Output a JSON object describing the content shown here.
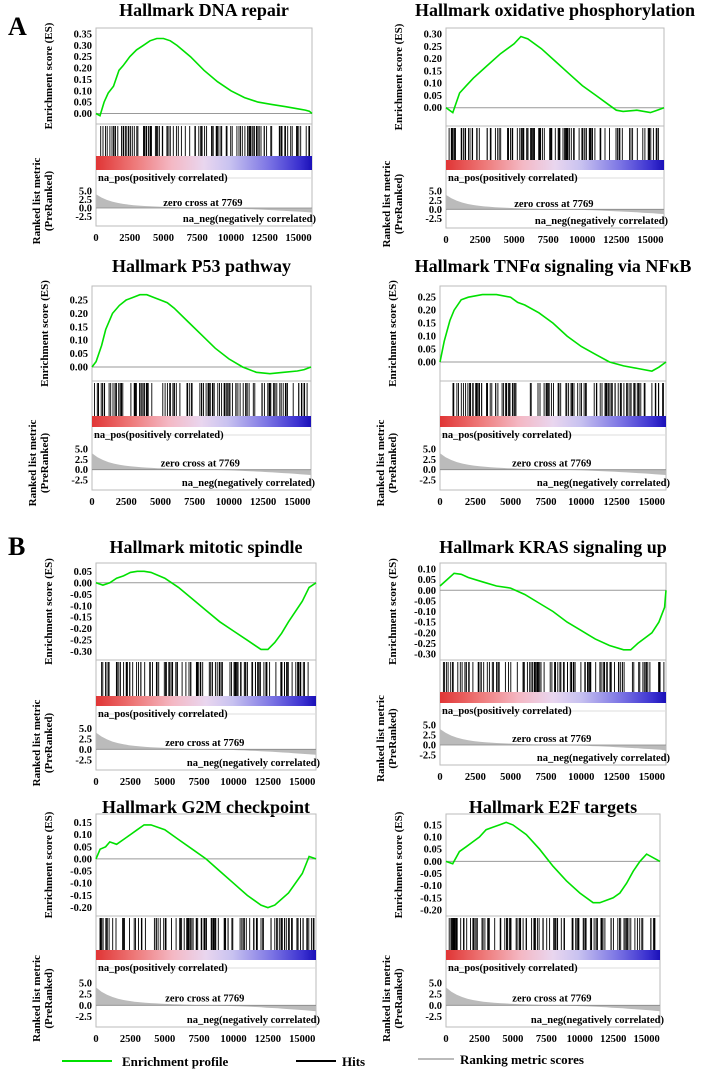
{
  "figure": {
    "panel_labels": [
      "A",
      "B"
    ],
    "legend": {
      "profile_label": "Enrichment profile",
      "hits_label": "Hits",
      "ranking_label": "Ranking metric scores",
      "profile_color": "#00e000",
      "hits_color": "#000000",
      "ranking_color": "#bbbbbb"
    }
  },
  "common": {
    "es_ylabel": "Enrichment score (ES)",
    "rank_ylabel_1": "Ranked list metric",
    "rank_ylabel_2": "(PreRanked)",
    "pos_label": "na_pos(positively correlated)",
    "zero_cross_label": "zero cross at 7769",
    "neg_label": "na_neg(negatively correlated)",
    "xticks": [
      "0",
      "2500",
      "5000",
      "7500",
      "10000",
      "12500",
      "15000"
    ],
    "xtick_values": [
      0,
      2500,
      5000,
      7500,
      10000,
      12500,
      15000
    ],
    "rank_yticks": [
      "5.0",
      "2.5",
      "0.0",
      "-2.5"
    ],
    "rank_ytick_values": [
      5.0,
      2.5,
      0.0,
      -2.5
    ],
    "xmax": 16000,
    "zero_cross": 7769
  },
  "chart_data": [
    {
      "type": "line",
      "title": "Hallmark DNA repair",
      "ylim": [
        -0.02,
        0.35
      ],
      "yticks": [
        "0.35",
        "0.30",
        "0.25",
        "0.20",
        "0.15",
        "0.10",
        "0.05",
        "0.00"
      ],
      "ytick_values": [
        0.35,
        0.3,
        0.25,
        0.2,
        0.15,
        0.1,
        0.05,
        0.0
      ],
      "es_curve": {
        "x": [
          0,
          300,
          600,
          900,
          1300,
          1700,
          2000,
          2500,
          3000,
          3500,
          4000,
          4500,
          5000,
          5500,
          6000,
          7000,
          8000,
          9000,
          10000,
          11000,
          12000,
          13000,
          14000,
          15000,
          15500,
          15800,
          16000
        ],
        "y": [
          0.0,
          -0.01,
          0.05,
          0.09,
          0.12,
          0.19,
          0.21,
          0.25,
          0.28,
          0.3,
          0.32,
          0.33,
          0.33,
          0.32,
          0.3,
          0.25,
          0.19,
          0.14,
          0.1,
          0.07,
          0.05,
          0.04,
          0.03,
          0.02,
          0.015,
          0.01,
          0.0
        ]
      }
    },
    {
      "type": "line",
      "title": "Hallmark oxidative phosphorylation",
      "ylim": [
        -0.05,
        0.3
      ],
      "yticks": [
        "0.30",
        "0.25",
        "0.20",
        "0.15",
        "0.10",
        "0.05",
        "0.00"
      ],
      "ytick_values": [
        0.3,
        0.25,
        0.2,
        0.15,
        0.1,
        0.05,
        0.0
      ],
      "es_curve": {
        "x": [
          0,
          500,
          1000,
          1500,
          2000,
          3000,
          4000,
          5000,
          5500,
          6000,
          7000,
          8000,
          9000,
          10000,
          11000,
          12000,
          12500,
          13000,
          14000,
          15000,
          15500,
          16000
        ],
        "y": [
          0.0,
          -0.02,
          0.06,
          0.09,
          0.12,
          0.17,
          0.22,
          0.26,
          0.29,
          0.28,
          0.24,
          0.19,
          0.14,
          0.09,
          0.05,
          0.01,
          -0.01,
          -0.015,
          -0.01,
          -0.02,
          -0.01,
          0.0
        ]
      }
    },
    {
      "type": "line",
      "title": "Hallmark P53 pathway",
      "ylim": [
        -0.03,
        0.28
      ],
      "yticks": [
        "0.25",
        "0.20",
        "0.15",
        "0.10",
        "0.05",
        "0.00"
      ],
      "ytick_values": [
        0.25,
        0.2,
        0.15,
        0.1,
        0.05,
        0.0
      ],
      "es_curve": {
        "x": [
          0,
          300,
          700,
          1000,
          1500,
          2000,
          2500,
          3000,
          3500,
          4000,
          4500,
          5000,
          5500,
          6000,
          7000,
          8000,
          9000,
          10000,
          11000,
          12000,
          13000,
          14000,
          15000,
          15500,
          16000
        ],
        "y": [
          0.0,
          0.02,
          0.08,
          0.14,
          0.2,
          0.23,
          0.25,
          0.26,
          0.27,
          0.27,
          0.26,
          0.25,
          0.24,
          0.22,
          0.17,
          0.12,
          0.07,
          0.03,
          0.0,
          -0.02,
          -0.025,
          -0.02,
          -0.015,
          -0.01,
          0.0
        ]
      }
    },
    {
      "type": "line",
      "title": "Hallmark TNFα signaling via NFκB",
      "ylim": [
        -0.05,
        0.27
      ],
      "yticks": [
        "0.25",
        "0.20",
        "0.15",
        "0.10",
        "0.05",
        "0.00"
      ],
      "ytick_values": [
        0.25,
        0.2,
        0.15,
        0.1,
        0.05,
        0.0
      ],
      "es_curve": {
        "x": [
          0,
          300,
          700,
          1000,
          1500,
          2000,
          3000,
          4000,
          5000,
          5500,
          6000,
          7000,
          8000,
          9000,
          10000,
          11000,
          12000,
          13000,
          14000,
          15000,
          15500,
          16000
        ],
        "y": [
          0.0,
          0.08,
          0.16,
          0.2,
          0.24,
          0.25,
          0.26,
          0.26,
          0.25,
          0.23,
          0.22,
          0.19,
          0.15,
          0.1,
          0.06,
          0.03,
          0.0,
          -0.015,
          -0.025,
          -0.035,
          -0.02,
          0.0
        ]
      }
    },
    {
      "type": "line",
      "title": "Hallmark mitotic spindle",
      "ylim": [
        -0.31,
        0.06
      ],
      "yticks": [
        "0.05",
        "0.00",
        "-0.05",
        "-0.10",
        "-0.15",
        "-0.20",
        "-0.25",
        "-0.30"
      ],
      "ytick_values": [
        0.05,
        0.0,
        -0.05,
        -0.1,
        -0.15,
        -0.2,
        -0.25,
        -0.3
      ],
      "es_curve": {
        "x": [
          0,
          500,
          1000,
          1500,
          2000,
          2500,
          3000,
          3500,
          4000,
          5000,
          6000,
          7000,
          8000,
          9000,
          10000,
          11000,
          11500,
          12000,
          12500,
          13000,
          13500,
          14000,
          15000,
          15500,
          16000
        ],
        "y": [
          0.0,
          -0.01,
          0.0,
          0.02,
          0.03,
          0.045,
          0.05,
          0.05,
          0.045,
          0.02,
          -0.02,
          -0.07,
          -0.12,
          -0.17,
          -0.21,
          -0.25,
          -0.27,
          -0.29,
          -0.29,
          -0.26,
          -0.22,
          -0.17,
          -0.08,
          -0.02,
          0.0
        ]
      }
    },
    {
      "type": "line",
      "title": "Hallmark KRAS signaling up",
      "ylim": [
        -0.3,
        0.1
      ],
      "yticks": [
        "0.10",
        "0.05",
        "0.00",
        "-0.05",
        "-0.10",
        "-0.15",
        "-0.20",
        "-0.25",
        "-0.30"
      ],
      "ytick_values": [
        0.1,
        0.05,
        0.0,
        -0.05,
        -0.1,
        -0.15,
        -0.2,
        -0.25,
        -0.3
      ],
      "es_curve": {
        "x": [
          0,
          500,
          1000,
          1500,
          2000,
          3000,
          4000,
          5000,
          6000,
          7000,
          8000,
          9000,
          10000,
          11000,
          12000,
          13000,
          13500,
          14000,
          15000,
          15500,
          15900,
          16000
        ],
        "y": [
          0.02,
          0.05,
          0.08,
          0.075,
          0.06,
          0.04,
          0.02,
          0.01,
          -0.02,
          -0.06,
          -0.1,
          -0.15,
          -0.19,
          -0.23,
          -0.26,
          -0.28,
          -0.28,
          -0.25,
          -0.2,
          -0.15,
          -0.08,
          0.0
        ]
      }
    },
    {
      "type": "line",
      "title": "Hallmark G2M checkpoint",
      "ylim": [
        -0.21,
        0.16
      ],
      "yticks": [
        "0.15",
        "0.10",
        "0.05",
        "0.00",
        "-0.05",
        "-0.10",
        "-0.15",
        "-0.20"
      ],
      "ytick_values": [
        0.15,
        0.1,
        0.05,
        0.0,
        -0.05,
        -0.1,
        -0.15,
        -0.2
      ],
      "es_curve": {
        "x": [
          0,
          300,
          700,
          1000,
          1500,
          2000,
          2500,
          3000,
          3500,
          4000,
          5000,
          6000,
          7000,
          8000,
          9000,
          10000,
          11000,
          12000,
          12500,
          13000,
          14000,
          15000,
          15500,
          16000
        ],
        "y": [
          0.0,
          0.04,
          0.05,
          0.07,
          0.06,
          0.08,
          0.1,
          0.12,
          0.14,
          0.14,
          0.12,
          0.08,
          0.04,
          0.0,
          -0.05,
          -0.1,
          -0.15,
          -0.19,
          -0.2,
          -0.19,
          -0.14,
          -0.06,
          0.01,
          0.0
        ]
      }
    },
    {
      "type": "line",
      "title": "Hallmark E2F targets",
      "ylim": [
        -0.2,
        0.17
      ],
      "yticks": [
        "0.15",
        "0.10",
        "0.05",
        "0.00",
        "-0.05",
        "-0.10",
        "-0.15",
        "-0.20"
      ],
      "ytick_values": [
        0.15,
        0.1,
        0.05,
        0.0,
        -0.05,
        -0.1,
        -0.15,
        -0.2
      ],
      "es_curve": {
        "x": [
          0,
          500,
          1000,
          1500,
          2000,
          2500,
          3000,
          3500,
          4000,
          4500,
          5000,
          6000,
          7000,
          8000,
          9000,
          10000,
          11000,
          11500,
          12000,
          12500,
          13000,
          13500,
          14000,
          14500,
          15000,
          16000
        ],
        "y": [
          0.0,
          -0.01,
          0.04,
          0.06,
          0.08,
          0.1,
          0.13,
          0.14,
          0.15,
          0.16,
          0.15,
          0.11,
          0.05,
          -0.02,
          -0.08,
          -0.13,
          -0.17,
          -0.17,
          -0.16,
          -0.15,
          -0.13,
          -0.09,
          -0.04,
          0.0,
          0.03,
          0.0
        ]
      }
    }
  ]
}
